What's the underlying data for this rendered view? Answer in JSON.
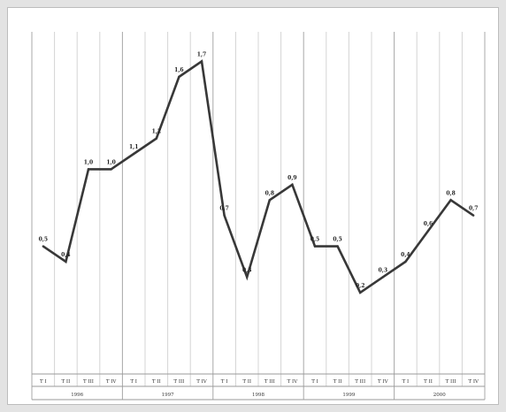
{
  "chart_data": {
    "type": "line",
    "title": "",
    "xlabel": "",
    "ylabel": "",
    "grid": true,
    "ylim": [
      -0.3,
      1.8
    ],
    "years": [
      "1996",
      "1997",
      "1998",
      "1999",
      "2000"
    ],
    "categories": [
      "T I",
      "T II",
      "T III",
      "T IV",
      "T I",
      "T II",
      "T III",
      "T IV",
      "T I",
      "T II",
      "T III",
      "T IV",
      "T I",
      "T II",
      "T III",
      "T IV",
      "T I",
      "T II",
      "T III",
      "T IV"
    ],
    "values": [
      0.5,
      0.4,
      1.0,
      1.0,
      1.1,
      1.2,
      1.6,
      1.7,
      0.7,
      0.3,
      0.8,
      0.9,
      0.5,
      0.5,
      0.2,
      0.3,
      0.4,
      0.6,
      0.8,
      0.7
    ],
    "labels": [
      "0,5",
      "0,4",
      "1,0",
      "1,0",
      "1,1",
      "1,2",
      "1,6",
      "1,7",
      "0,7",
      "0,3",
      "0,8",
      "0,9",
      "0,5",
      "0,5",
      "0,2",
      "0,3",
      "0,4",
      "0,6",
      "0,8",
      "0,7"
    ],
    "colors": {
      "line": "#383838",
      "grid": "#d4d4d4"
    }
  }
}
